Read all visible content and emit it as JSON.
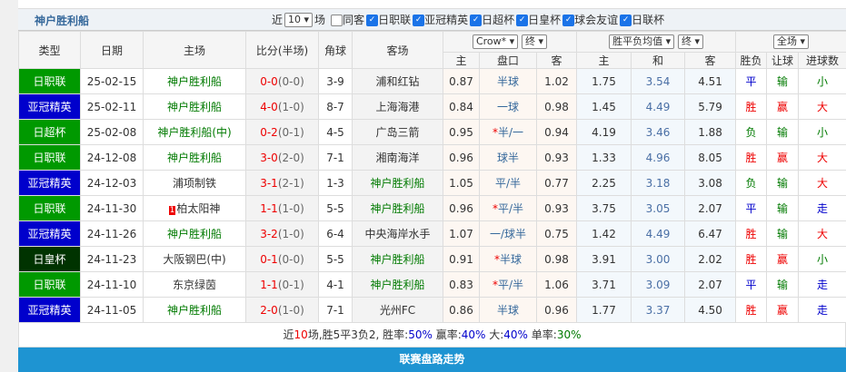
{
  "team": "神户胜利船",
  "filter": {
    "prefix": "近",
    "count": "10",
    "suffix": "场",
    "checks": [
      {
        "label": "同客",
        "on": false
      },
      {
        "label": "日职联",
        "on": true
      },
      {
        "label": "亚冠精英",
        "on": true
      },
      {
        "label": "日超杯",
        "on": true
      },
      {
        "label": "日皇杯",
        "on": true
      },
      {
        "label": "球会友谊",
        "on": true
      },
      {
        "label": "日联杯",
        "on": true
      }
    ]
  },
  "headers": {
    "type": "类型",
    "date": "日期",
    "home": "主场",
    "score": "比分(半场)",
    "corner": "角球",
    "away": "客场",
    "company": "Crow*",
    "asian_mode": "终",
    "euro": "胜平负均值",
    "euro_mode": "终",
    "scope": "全场",
    "a_home": "主",
    "a_line": "盘口",
    "a_away": "客",
    "e_home": "主",
    "e_draw": "和",
    "e_away": "客",
    "wl": "胜负",
    "hc": "让球",
    "ou": "进球数"
  },
  "type_colors": {
    "日职联": "#009900",
    "亚冠精英": "#0000cc",
    "日超杯": "#009900",
    "日皇杯": "#003300"
  },
  "rows": [
    {
      "type": "日职联",
      "date": "25-02-15",
      "home": "神户胜利船",
      "score": "0-0",
      "half": "(0-0)",
      "corner": "3-9",
      "away": "浦和红钻",
      "ah": "0.87",
      "line": "半球",
      "aa": "1.02",
      "eh": "1.75",
      "ed": "3.54",
      "ea": "4.51",
      "wl": "平",
      "hc": "输",
      "ou": "小"
    },
    {
      "type": "亚冠精英",
      "date": "25-02-11",
      "home": "神户胜利船",
      "score": "4-0",
      "half": "(1-0)",
      "corner": "8-7",
      "away": "上海海港",
      "ah": "0.84",
      "line": "一球",
      "aa": "0.98",
      "eh": "1.45",
      "ed": "4.49",
      "ea": "5.79",
      "wl": "胜",
      "hc": "赢",
      "ou": "大"
    },
    {
      "type": "日超杯",
      "date": "25-02-08",
      "home": "神户胜利船(中)",
      "score": "0-2",
      "half": "(0-1)",
      "corner": "4-5",
      "away": "广岛三箭",
      "ah": "0.95",
      "line": "*半/一",
      "aa": "0.94",
      "eh": "4.19",
      "ed": "3.46",
      "ea": "1.88",
      "wl": "负",
      "hc": "输",
      "ou": "小"
    },
    {
      "type": "日职联",
      "date": "24-12-08",
      "home": "神户胜利船",
      "score": "3-0",
      "half": "(2-0)",
      "corner": "7-1",
      "away": "湘南海洋",
      "ah": "0.96",
      "line": "球半",
      "aa": "0.93",
      "eh": "1.33",
      "ed": "4.96",
      "ea": "8.05",
      "wl": "胜",
      "hc": "赢",
      "ou": "大"
    },
    {
      "type": "亚冠精英",
      "date": "24-12-03",
      "home": "浦项制铁",
      "score": "3-1",
      "half": "(2-1)",
      "corner": "1-3",
      "away": "神户胜利船",
      "ah": "1.05",
      "line": "平/半",
      "aa": "0.77",
      "eh": "2.25",
      "ed": "3.18",
      "ea": "3.08",
      "wl": "负",
      "hc": "输",
      "ou": "大"
    },
    {
      "type": "日职联",
      "date": "24-11-30",
      "rank": "1",
      "home": "柏太阳神",
      "score": "1-1",
      "half": "(1-0)",
      "corner": "5-5",
      "away": "神户胜利船",
      "ah": "0.96",
      "line": "*平/半",
      "aa": "0.93",
      "eh": "3.75",
      "ed": "3.05",
      "ea": "2.07",
      "wl": "平",
      "hc": "输",
      "ou": "走"
    },
    {
      "type": "亚冠精英",
      "date": "24-11-26",
      "home": "神户胜利船",
      "score": "3-2",
      "half": "(1-0)",
      "corner": "6-4",
      "away": "中央海岸水手",
      "ah": "1.07",
      "line": "一/球半",
      "aa": "0.75",
      "eh": "1.42",
      "ed": "4.49",
      "ea": "6.47",
      "wl": "胜",
      "hc": "输",
      "ou": "大"
    },
    {
      "type": "日皇杯",
      "date": "24-11-23",
      "home": "大阪钢巴(中)",
      "score": "0-1",
      "half": "(0-0)",
      "corner": "5-5",
      "away": "神户胜利船",
      "ah": "0.91",
      "line": "*半球",
      "aa": "0.98",
      "eh": "3.91",
      "ed": "3.00",
      "ea": "2.02",
      "wl": "胜",
      "hc": "赢",
      "ou": "小"
    },
    {
      "type": "日职联",
      "date": "24-11-10",
      "home": "东京绿茵",
      "score": "1-1",
      "half": "(0-1)",
      "corner": "4-1",
      "away": "神户胜利船",
      "ah": "0.83",
      "line": "*平/半",
      "aa": "1.06",
      "eh": "3.71",
      "ed": "3.09",
      "ea": "2.07",
      "wl": "平",
      "hc": "输",
      "ou": "走"
    },
    {
      "type": "亚冠精英",
      "date": "24-11-05",
      "home": "神户胜利船",
      "score": "2-0",
      "half": "(1-0)",
      "corner": "7-1",
      "away": "光州FC",
      "ah": "0.86",
      "line": "半球",
      "aa": "0.96",
      "eh": "1.77",
      "ed": "3.37",
      "ea": "4.50",
      "wl": "胜",
      "hc": "赢",
      "ou": "走"
    }
  ],
  "summary": {
    "p1": "近",
    "n": "10",
    "p2": "场,胜5平3负2, 胜率:",
    "win": "50%",
    "p3": " 赢率:",
    "hcwin": "40%",
    "p4": " 大:",
    "big": "40%",
    "p5": " 单率:",
    "odd": "30%"
  },
  "footer": "联赛盘路走势"
}
